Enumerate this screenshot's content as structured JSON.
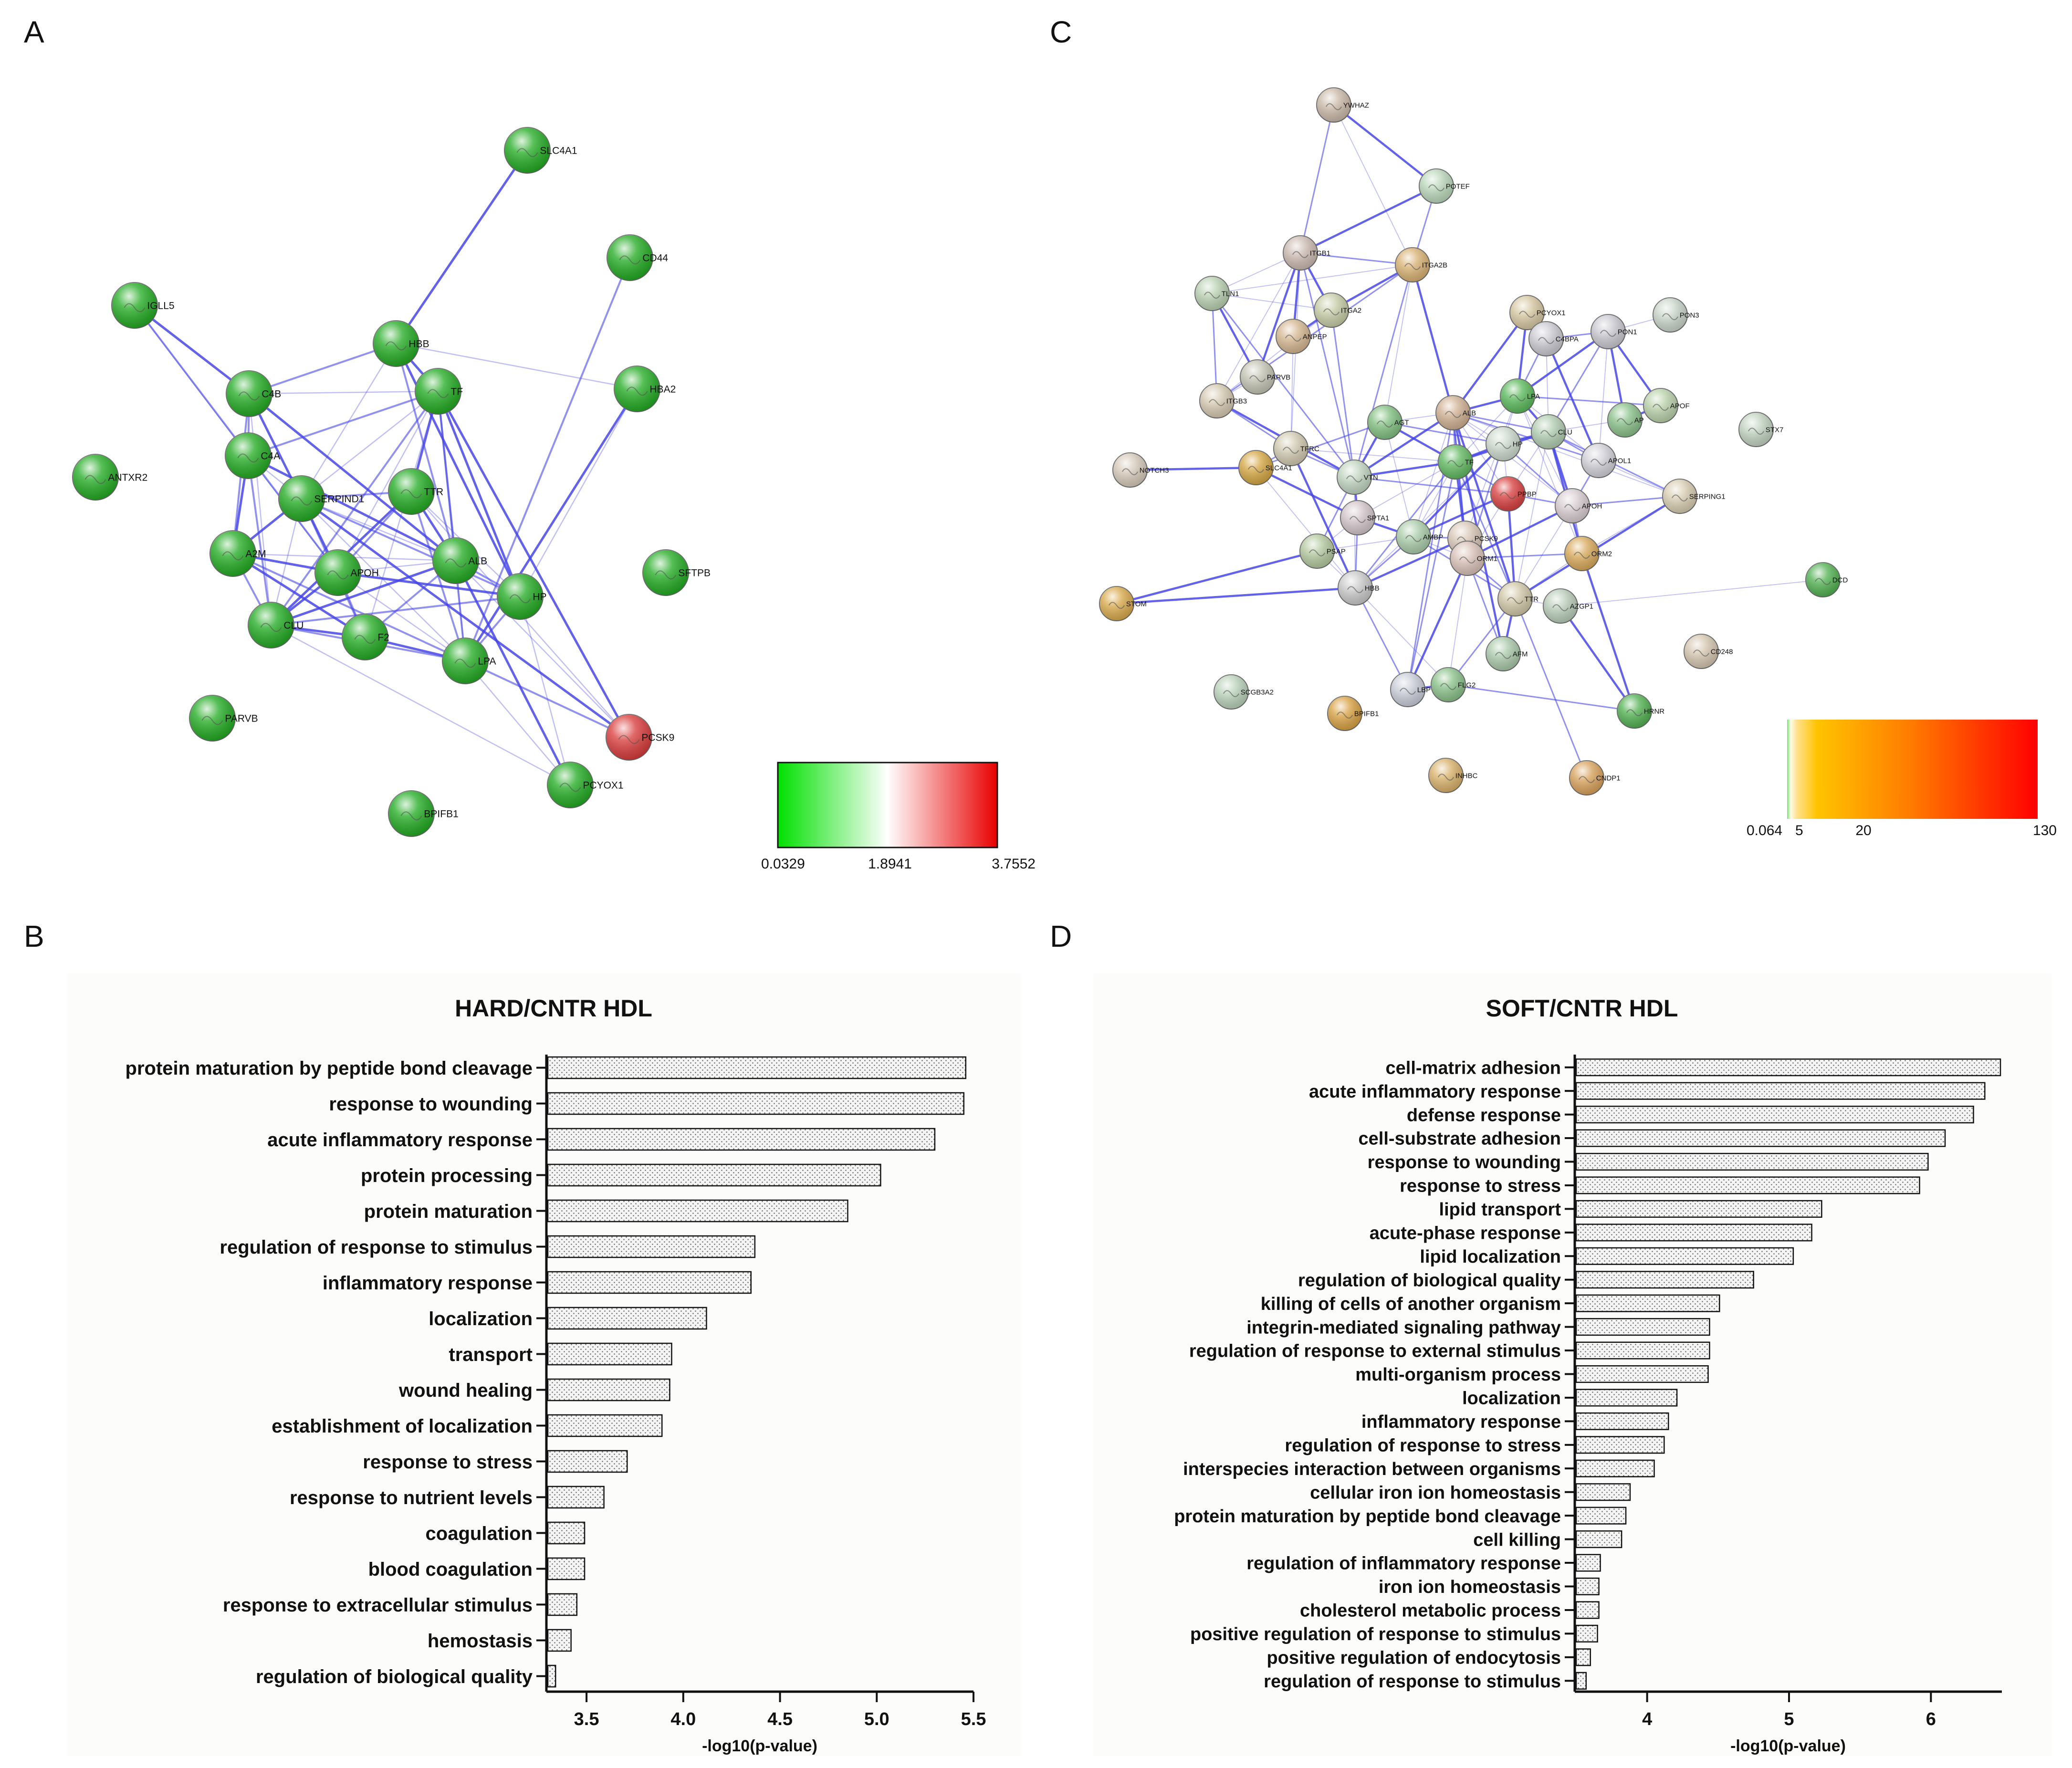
{
  "panels": {
    "a": "A",
    "b": "B",
    "c": "C",
    "d": "D"
  },
  "colors": {
    "edge": "#4747e6",
    "bar_fill": "#f3f3f3",
    "bar_stroke": "#111111",
    "node_green": "#23b023",
    "node_red": "#d62a2a"
  },
  "network_a": {
    "nodes": [
      {
        "id": "SLC4A1",
        "c": "#1faa1f"
      },
      {
        "id": "CD44",
        "c": "#1faa1f"
      },
      {
        "id": "IGLL5",
        "c": "#1faa1f"
      },
      {
        "id": "HBB",
        "c": "#1faa1f"
      },
      {
        "id": "HBA2",
        "c": "#1faa1f"
      },
      {
        "id": "C4B",
        "c": "#1faa1f"
      },
      {
        "id": "TF",
        "c": "#1faa1f"
      },
      {
        "id": "C4A",
        "c": "#1faa1f"
      },
      {
        "id": "ANTXR2",
        "c": "#1faa1f"
      },
      {
        "id": "SERPIND1",
        "c": "#1faa1f"
      },
      {
        "id": "TTR",
        "c": "#1faa1f"
      },
      {
        "id": "A2M",
        "c": "#1faa1f"
      },
      {
        "id": "APOH",
        "c": "#1faa1f"
      },
      {
        "id": "ALB",
        "c": "#1faa1f"
      },
      {
        "id": "HP",
        "c": "#1faa1f"
      },
      {
        "id": "SFTPB",
        "c": "#1faa1f"
      },
      {
        "id": "CLU",
        "c": "#1faa1f"
      },
      {
        "id": "F2",
        "c": "#1faa1f"
      },
      {
        "id": "LPA",
        "c": "#1faa1f"
      },
      {
        "id": "PARVB",
        "c": "#1faa1f"
      },
      {
        "id": "PCSK9",
        "c": "#d93838"
      },
      {
        "id": "PCYOX1",
        "c": "#1faa1f"
      },
      {
        "id": "BPIFB1",
        "c": "#1faa1f"
      }
    ],
    "edges": [
      [
        "SLC4A1",
        "HBB"
      ],
      [
        "CD44",
        "LPA"
      ],
      [
        "IGLL5",
        "C4A"
      ],
      [
        "IGLL5",
        "C4B"
      ],
      [
        "IGLL5",
        "APOH"
      ],
      [
        "HBB",
        "HBA2"
      ],
      [
        "HBB",
        "TF"
      ],
      [
        "HBB",
        "C4B"
      ],
      [
        "HBB",
        "SERPIND1"
      ],
      [
        "HBB",
        "HP"
      ],
      [
        "HBB",
        "ALB"
      ],
      [
        "HBA2",
        "HP"
      ],
      [
        "HBA2",
        "LPA"
      ],
      [
        "C4B",
        "C4A"
      ],
      [
        "C4B",
        "TF"
      ],
      [
        "C4B",
        "SERPIND1"
      ],
      [
        "C4B",
        "A2M"
      ],
      [
        "C4B",
        "CLU"
      ],
      [
        "C4B",
        "ALB"
      ],
      [
        "TF",
        "C4A"
      ],
      [
        "TF",
        "SERPIND1"
      ],
      [
        "TF",
        "TTR"
      ],
      [
        "TF",
        "ALB"
      ],
      [
        "TF",
        "APOH"
      ],
      [
        "TF",
        "HP"
      ],
      [
        "TF",
        "CLU"
      ],
      [
        "TF",
        "F2"
      ],
      [
        "TF",
        "PCSK9"
      ],
      [
        "TF",
        "LPA"
      ],
      [
        "C4A",
        "SERPIND1"
      ],
      [
        "C4A",
        "A2M"
      ],
      [
        "C4A",
        "CLU"
      ],
      [
        "C4A",
        "APOH"
      ],
      [
        "C4A",
        "ALB"
      ],
      [
        "SERPIND1",
        "TTR"
      ],
      [
        "SERPIND1",
        "ALB"
      ],
      [
        "SERPIND1",
        "APOH"
      ],
      [
        "SERPIND1",
        "F2"
      ],
      [
        "SERPIND1",
        "CLU"
      ],
      [
        "SERPIND1",
        "A2M"
      ],
      [
        "SERPIND1",
        "HP"
      ],
      [
        "SERPIND1",
        "LPA"
      ],
      [
        "TTR",
        "ALB"
      ],
      [
        "TTR",
        "APOH"
      ],
      [
        "TTR",
        "HP"
      ],
      [
        "TTR",
        "CLU"
      ],
      [
        "TTR",
        "LPA"
      ],
      [
        "TTR",
        "PCSK9"
      ],
      [
        "A2M",
        "APOH"
      ],
      [
        "A2M",
        "CLU"
      ],
      [
        "A2M",
        "ALB"
      ],
      [
        "A2M",
        "F2"
      ],
      [
        "A2M",
        "LPA"
      ],
      [
        "APOH",
        "ALB"
      ],
      [
        "APOH",
        "CLU"
      ],
      [
        "APOH",
        "F2"
      ],
      [
        "APOH",
        "LPA"
      ],
      [
        "APOH",
        "HP"
      ],
      [
        "ALB",
        "HP"
      ],
      [
        "ALB",
        "LPA"
      ],
      [
        "ALB",
        "CLU"
      ],
      [
        "ALB",
        "F2"
      ],
      [
        "ALB",
        "PCSK9"
      ],
      [
        "ALB",
        "PCYOX1"
      ],
      [
        "HP",
        "LPA"
      ],
      [
        "HP",
        "PCYOX1"
      ],
      [
        "CLU",
        "F2"
      ],
      [
        "CLU",
        "LPA"
      ],
      [
        "CLU",
        "PCYOX1"
      ],
      [
        "F2",
        "LPA"
      ],
      [
        "LPA",
        "PCSK9"
      ],
      [
        "LPA",
        "PCYOX1"
      ],
      [
        "PCSK9",
        "SERPIND1"
      ],
      [
        "HP",
        "CLU"
      ]
    ],
    "scale": {
      "min": "0.0329",
      "mid": "1.8941",
      "max": "3.7552"
    }
  },
  "network_c": {
    "nodes": [
      {
        "id": "YWHAZ",
        "c": "#c9b8a6"
      },
      {
        "id": "POTEF",
        "c": "#b9d6b9"
      },
      {
        "id": "ITGB1",
        "c": "#cbb8b0"
      },
      {
        "id": "ITGA2B",
        "c": "#d8b070"
      },
      {
        "id": "TLN1",
        "c": "#b8d0b0"
      },
      {
        "id": "ITGA2",
        "c": "#c6cca6"
      },
      {
        "id": "ANPEP",
        "c": "#d5b58f"
      },
      {
        "id": "PARVB",
        "c": "#c2c2b2"
      },
      {
        "id": "ITGB3",
        "c": "#d5c8b0"
      },
      {
        "id": "NOTCH3",
        "c": "#d5c8b8"
      },
      {
        "id": "TFRC",
        "c": "#d0c8b0"
      },
      {
        "id": "SLC4A1",
        "c": "#d4a540"
      },
      {
        "id": "AGT",
        "c": "#7fbf7f"
      },
      {
        "id": "ALB",
        "c": "#cfae90"
      },
      {
        "id": "VTN",
        "c": "#c0d4c0"
      },
      {
        "id": "SPTA1",
        "c": "#d2c4c8"
      },
      {
        "id": "PSAP",
        "c": "#b2c89e"
      },
      {
        "id": "HBB",
        "c": "#c8c8c8"
      },
      {
        "id": "AMBP",
        "c": "#a8cba8"
      },
      {
        "id": "PCSK9",
        "c": "#d8c6b6"
      },
      {
        "id": "ORM1",
        "c": "#d8c0b6"
      },
      {
        "id": "TF",
        "c": "#5fb85f"
      },
      {
        "id": "HP",
        "c": "#cbd8cb"
      },
      {
        "id": "LPA",
        "c": "#58b858"
      },
      {
        "id": "PPBP",
        "c": "#d83c3c"
      },
      {
        "id": "PCYOX1",
        "c": "#d6c6a0"
      },
      {
        "id": "C4BPA",
        "c": "#c8c8d0"
      },
      {
        "id": "PON1",
        "c": "#c8c8d0"
      },
      {
        "id": "PON3",
        "c": "#c8d4c8"
      },
      {
        "id": "APOF",
        "c": "#b8d0a8"
      },
      {
        "id": "AP",
        "c": "#88c088"
      },
      {
        "id": "CLU",
        "c": "#b0ccb0"
      },
      {
        "id": "APOL1",
        "c": "#d0d0d8"
      },
      {
        "id": "APOH",
        "c": "#d8ccd0"
      },
      {
        "id": "SERPING1",
        "c": "#d8ccb0"
      },
      {
        "id": "STX7",
        "c": "#c0d2c0"
      },
      {
        "id": "ORM2",
        "c": "#d8a858"
      },
      {
        "id": "TTR",
        "c": "#d0c6a6"
      },
      {
        "id": "AZGP1",
        "c": "#b8ccb8"
      },
      {
        "id": "DCD",
        "c": "#4fb04f"
      },
      {
        "id": "STOM",
        "c": "#d8a848"
      },
      {
        "id": "AFM",
        "c": "#a8c8a8"
      },
      {
        "id": "CD248",
        "c": "#d4c4ae"
      },
      {
        "id": "LBP",
        "c": "#c8ccd8"
      },
      {
        "id": "FLG2",
        "c": "#88c088"
      },
      {
        "id": "SCGB3A2",
        "c": "#b8d0b8"
      },
      {
        "id": "BPIFB1",
        "c": "#d8a040"
      },
      {
        "id": "HRNR",
        "c": "#4fb04f"
      },
      {
        "id": "INHBC",
        "c": "#d8b068"
      },
      {
        "id": "CNDP1",
        "c": "#d8a058"
      }
    ],
    "edges": [
      [
        "YWHAZ",
        "POTEF"
      ],
      [
        "YWHAZ",
        "ITGB1"
      ],
      [
        "YWHAZ",
        "ITGA2B"
      ],
      [
        "POTEF",
        "ITGB1"
      ],
      [
        "POTEF",
        "ITGA2B"
      ],
      [
        "ITGB1",
        "TLN1"
      ],
      [
        "ITGB1",
        "ITGA2"
      ],
      [
        "ITGB1",
        "ITGA2B"
      ],
      [
        "ITGB1",
        "ITGB3"
      ],
      [
        "ITGB1",
        "ANPEP"
      ],
      [
        "ITGB1",
        "VTN"
      ],
      [
        "ITGB1",
        "TFRC"
      ],
      [
        "ITGB1",
        "PARVB"
      ],
      [
        "ITGA2B",
        "ITGB3"
      ],
      [
        "ITGA2B",
        "TLN1"
      ],
      [
        "ITGA2B",
        "ITGA2"
      ],
      [
        "ITGA2B",
        "VTN"
      ],
      [
        "ITGA2B",
        "AGT"
      ],
      [
        "ITGA2B",
        "ALB"
      ],
      [
        "TLN1",
        "ITGB3"
      ],
      [
        "TLN1",
        "ITGA2"
      ],
      [
        "TLN1",
        "PARVB"
      ],
      [
        "TLN1",
        "VTN"
      ],
      [
        "ITGA2",
        "ITGB3"
      ],
      [
        "ITGA2",
        "ANPEP"
      ],
      [
        "ITGA2",
        "VTN"
      ],
      [
        "ANPEP",
        "TFRC"
      ],
      [
        "ITGB3",
        "VTN"
      ],
      [
        "ITGB3",
        "TFRC"
      ],
      [
        "ITGB3",
        "PARVB"
      ],
      [
        "NOTCH3",
        "SLC4A1"
      ],
      [
        "TFRC",
        "SLC4A1"
      ],
      [
        "TFRC",
        "TF"
      ],
      [
        "TFRC",
        "HBB"
      ],
      [
        "TFRC",
        "VTN"
      ],
      [
        "SLC4A1",
        "HBB"
      ],
      [
        "SLC4A1",
        "SPTA1"
      ],
      [
        "SLC4A1",
        "AGT"
      ],
      [
        "AGT",
        "ALB"
      ],
      [
        "AGT",
        "TF"
      ],
      [
        "AGT",
        "HP"
      ],
      [
        "AGT",
        "AMBP"
      ],
      [
        "AGT",
        "VTN"
      ],
      [
        "ALB",
        "TF"
      ],
      [
        "ALB",
        "HP"
      ],
      [
        "ALB",
        "LPA"
      ],
      [
        "ALB",
        "CLU"
      ],
      [
        "ALB",
        "APOH"
      ],
      [
        "ALB",
        "TTR"
      ],
      [
        "ALB",
        "ORM1"
      ],
      [
        "ALB",
        "AMBP"
      ],
      [
        "ALB",
        "PCYOX1"
      ],
      [
        "ALB",
        "APOL1"
      ],
      [
        "ALB",
        "SERPING1"
      ],
      [
        "ALB",
        "VTN"
      ],
      [
        "ALB",
        "PCSK9"
      ],
      [
        "ALB",
        "PPBP"
      ],
      [
        "TF",
        "HP"
      ],
      [
        "TF",
        "HBB"
      ],
      [
        "TF",
        "LPA"
      ],
      [
        "TF",
        "CLU"
      ],
      [
        "TF",
        "TTR"
      ],
      [
        "TF",
        "AMBP"
      ],
      [
        "TF",
        "ORM1"
      ],
      [
        "TF",
        "PPBP"
      ],
      [
        "TF",
        "SPTA1"
      ],
      [
        "TF",
        "VTN"
      ],
      [
        "TF",
        "LBP"
      ],
      [
        "HP",
        "HBB"
      ],
      [
        "HP",
        "CLU"
      ],
      [
        "HP",
        "APOH"
      ],
      [
        "HP",
        "LPA"
      ],
      [
        "HP",
        "AMBP"
      ],
      [
        "HP",
        "ORM1"
      ],
      [
        "HP",
        "PPBP"
      ],
      [
        "LPA",
        "CLU"
      ],
      [
        "LPA",
        "C4BPA"
      ],
      [
        "LPA",
        "APOL1"
      ],
      [
        "LPA",
        "PON1"
      ],
      [
        "LPA",
        "APOF"
      ],
      [
        "LPA",
        "APOH"
      ],
      [
        "LPA",
        "PCYOX1"
      ],
      [
        "PPBP",
        "APOH"
      ],
      [
        "PPBP",
        "ORM1"
      ],
      [
        "PPBP",
        "TTR"
      ],
      [
        "PPBP",
        "VTN"
      ],
      [
        "PPBP",
        "CLU"
      ],
      [
        "PPBP",
        "AMBP"
      ],
      [
        "C4BPA",
        "PON1"
      ],
      [
        "C4BPA",
        "CLU"
      ],
      [
        "C4BPA",
        "APOL1"
      ],
      [
        "C4BPA",
        "PCYOX1"
      ],
      [
        "PON1",
        "PON3"
      ],
      [
        "PON1",
        "APOF"
      ],
      [
        "PON1",
        "CLU"
      ],
      [
        "PON1",
        "APOL1"
      ],
      [
        "PON1",
        "AP"
      ],
      [
        "CLU",
        "APOL1"
      ],
      [
        "CLU",
        "AP"
      ],
      [
        "CLU",
        "APOH"
      ],
      [
        "CLU",
        "SERPING1"
      ],
      [
        "CLU",
        "TTR"
      ],
      [
        "CLU",
        "ORM2"
      ],
      [
        "APOL1",
        "APOH"
      ],
      [
        "APOL1",
        "SERPING1"
      ],
      [
        "AP",
        "APOF"
      ],
      [
        "APOH",
        "ORM2"
      ],
      [
        "APOH",
        "TTR"
      ],
      [
        "APOH",
        "ORM1"
      ],
      [
        "APOH",
        "SERPING1"
      ],
      [
        "SERPING1",
        "ORM2"
      ],
      [
        "SERPING1",
        "TTR"
      ],
      [
        "ORM2",
        "ORM1"
      ],
      [
        "ORM2",
        "TTR"
      ],
      [
        "ORM2",
        "HRNR"
      ],
      [
        "ORM1",
        "TTR"
      ],
      [
        "ORM1",
        "AMBP"
      ],
      [
        "ORM1",
        "PCSK9"
      ],
      [
        "ORM1",
        "AFM"
      ],
      [
        "ORM1",
        "FLG2"
      ],
      [
        "ORM1",
        "LBP"
      ],
      [
        "TTR",
        "AMBP"
      ],
      [
        "TTR",
        "AZGP1"
      ],
      [
        "TTR",
        "AFM"
      ],
      [
        "TTR",
        "FLG2"
      ],
      [
        "AZGP1",
        "DCD"
      ],
      [
        "AZGP1",
        "HRNR"
      ],
      [
        "PCSK9",
        "AMBP"
      ],
      [
        "PCSK9",
        "LPA"
      ],
      [
        "PCSK9",
        "HBB"
      ],
      [
        "AMBP",
        "HBB"
      ],
      [
        "AMBP",
        "PSAP"
      ],
      [
        "AMBP",
        "SPTA1"
      ],
      [
        "SPTA1",
        "HBB"
      ],
      [
        "SPTA1",
        "PSAP"
      ],
      [
        "PSAP",
        "STOM"
      ],
      [
        "PSAP",
        "VTN"
      ],
      [
        "PSAP",
        "HBB"
      ],
      [
        "HBB",
        "STOM"
      ],
      [
        "HBB",
        "LBP"
      ],
      [
        "HBB",
        "FLG2"
      ],
      [
        "FLG2",
        "LBP"
      ],
      [
        "FLG2",
        "HRNR"
      ],
      [
        "VTN",
        "HBB"
      ],
      [
        "VTN",
        "SPTA1"
      ],
      [
        "LBP",
        "ALB"
      ],
      [
        "ORM2",
        "LPA"
      ],
      [
        "AFM",
        "ALB"
      ],
      [
        "CNDP1",
        "TTR"
      ]
    ],
    "scale": {
      "min": "0.064",
      "t1": "5",
      "t2": "20",
      "max": "130"
    }
  },
  "bar_b": {
    "chart_data": {
      "type": "bar",
      "orientation": "horizontal",
      "title": "HARD/CNTR HDL",
      "xlabel": "-log10(p-value)",
      "xlim": [
        3.3,
        5.5
      ],
      "xticks": [
        "3.5",
        "4.0",
        "4.5",
        "5.0",
        "5.5"
      ],
      "categories": [
        "protein maturation by peptide bond cleavage",
        "response to wounding",
        "acute inflammatory response",
        "protein processing",
        "protein maturation",
        "regulation of response to stimulus",
        "inflammatory response",
        "localization",
        "transport",
        "wound healing",
        "establishment of localization",
        "response to stress",
        "response to nutrient levels",
        "coagulation",
        "blood coagulation",
        "response to extracellular stimulus",
        "hemostasis",
        "regulation of biological quality"
      ],
      "values": [
        5.46,
        5.45,
        5.3,
        5.02,
        4.85,
        4.37,
        4.35,
        4.12,
        3.94,
        3.93,
        3.89,
        3.71,
        3.59,
        3.49,
        3.49,
        3.45,
        3.42,
        3.34
      ]
    }
  },
  "bar_d": {
    "chart_data": {
      "type": "bar",
      "orientation": "horizontal",
      "title": "SOFT/CNTR HDL",
      "xlabel": "-log10(p-value)",
      "xlim": [
        3.5,
        6.5
      ],
      "xticks": [
        "4",
        "5",
        "6"
      ],
      "categories": [
        "cell-matrix adhesion",
        "acute inflammatory response",
        "defense response",
        "cell-substrate adhesion",
        "response to wounding",
        "response to stress",
        "lipid transport",
        "acute-phase response",
        "lipid localization",
        "regulation of biological quality",
        "killing of cells of another organism",
        "integrin-mediated signaling pathway",
        "regulation of response to external stimulus",
        "multi-organism process",
        "localization",
        "inflammatory response",
        "regulation of response to stress",
        "interspecies interaction between organisms",
        "cellular iron ion homeostasis",
        "protein maturation by peptide bond cleavage",
        "cell killing",
        "regulation of inflammatory response",
        "iron ion homeostasis",
        "cholesterol metabolic process",
        "positive regulation of response to stimulus",
        "positive regulation of endocytosis",
        "regulation of response to stimulus"
      ],
      "values": [
        6.49,
        6.38,
        6.3,
        6.1,
        5.98,
        5.92,
        5.23,
        5.16,
        5.03,
        4.75,
        4.51,
        4.44,
        4.44,
        4.43,
        4.21,
        4.15,
        4.12,
        4.05,
        3.88,
        3.85,
        3.82,
        3.67,
        3.66,
        3.66,
        3.65,
        3.6,
        3.57
      ]
    }
  }
}
